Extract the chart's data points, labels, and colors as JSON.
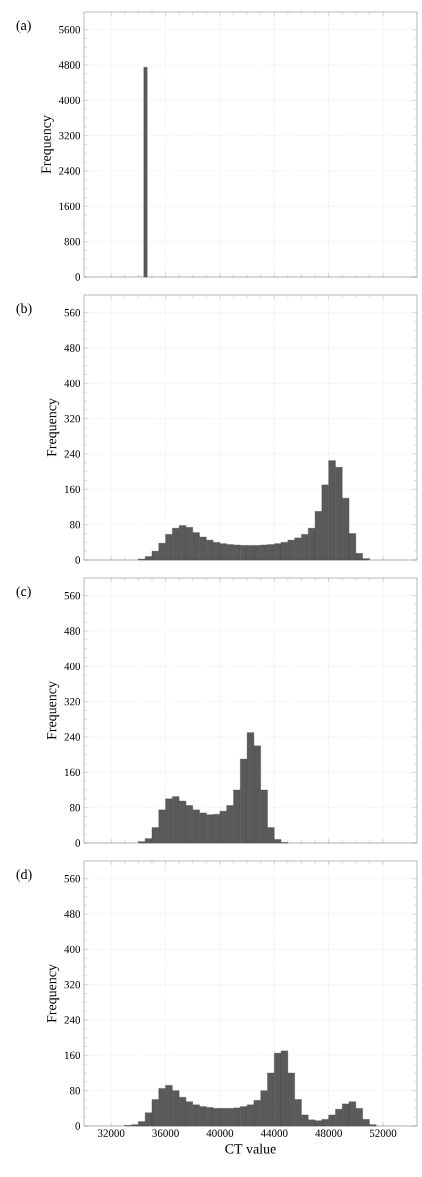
{
  "chart_data": [
    {
      "type": "histogram",
      "title": "(a)",
      "ylabel": "Frequency",
      "color": "#5a5a5a",
      "bins": [
        34400,
        34650
      ],
      "values": [
        4750
      ],
      "xlim": [
        30000,
        54500
      ],
      "xticks": [
        32000,
        36000,
        40000,
        44000,
        48000,
        52000
      ],
      "ylim": [
        0,
        6000
      ],
      "yticks": [
        0,
        800,
        1600,
        2400,
        3200,
        4000,
        4800,
        5600
      ],
      "grid": true,
      "tick_labels": "y"
    },
    {
      "type": "histogram",
      "title": "(b)",
      "ylabel": "Frequency",
      "color": "#5a5a5a",
      "bins": [
        34000,
        34500,
        35000,
        35500,
        36000,
        36500,
        37000,
        37500,
        38000,
        38500,
        39000,
        39500,
        40000,
        40500,
        41000,
        41500,
        42000,
        42500,
        43000,
        43500,
        44000,
        44500,
        45000,
        45500,
        46000,
        46500,
        47000,
        47500,
        48000,
        48500,
        49000,
        49500,
        50000,
        50500,
        51000
      ],
      "values": [
        2,
        8,
        20,
        38,
        58,
        72,
        78,
        74,
        62,
        52,
        45,
        40,
        37,
        35,
        34,
        33,
        33,
        33,
        34,
        35,
        37,
        40,
        45,
        50,
        58,
        72,
        110,
        170,
        225,
        210,
        140,
        60,
        15,
        3
      ],
      "xlim": [
        30000,
        54500
      ],
      "xticks": [
        32000,
        36000,
        40000,
        44000,
        48000,
        52000
      ],
      "ylim": [
        0,
        600
      ],
      "yticks": [
        0,
        80,
        160,
        240,
        320,
        400,
        480,
        560
      ],
      "grid": true,
      "tick_labels": "y"
    },
    {
      "type": "histogram",
      "title": "(c)",
      "ylabel": "Frequency",
      "color": "#5a5a5a",
      "bins": [
        34000,
        34500,
        35000,
        35500,
        36000,
        36500,
        37000,
        37500,
        38000,
        38500,
        39000,
        39500,
        40000,
        40500,
        41000,
        41500,
        42000,
        42500,
        43000,
        43500,
        44000,
        44500,
        45000
      ],
      "values": [
        3,
        10,
        35,
        75,
        100,
        105,
        95,
        85,
        75,
        68,
        64,
        65,
        72,
        85,
        120,
        190,
        250,
        220,
        120,
        35,
        8,
        1
      ],
      "xlim": [
        30000,
        54500
      ],
      "xticks": [
        32000,
        36000,
        40000,
        44000,
        48000,
        52000
      ],
      "ylim": [
        0,
        600
      ],
      "yticks": [
        0,
        80,
        160,
        240,
        320,
        400,
        480,
        560
      ],
      "grid": true,
      "tick_labels": "y"
    },
    {
      "type": "histogram",
      "title": "(d)",
      "ylabel": "Frequency",
      "xlabel": "CT value",
      "color": "#5a5a5a",
      "bins": [
        33000,
        33500,
        34000,
        34500,
        35000,
        35500,
        36000,
        36500,
        37000,
        37500,
        38000,
        38500,
        39000,
        39500,
        40000,
        40500,
        41000,
        41500,
        42000,
        42500,
        43000,
        43500,
        44000,
        44500,
        45000,
        45500,
        46000,
        46500,
        47000,
        47500,
        48000,
        48500,
        49000,
        49500,
        50000,
        50500,
        51000,
        51500
      ],
      "values": [
        1,
        3,
        10,
        30,
        60,
        85,
        92,
        80,
        65,
        55,
        48,
        44,
        42,
        40,
        40,
        40,
        41,
        44,
        48,
        58,
        80,
        120,
        165,
        170,
        120,
        60,
        25,
        14,
        12,
        15,
        25,
        38,
        50,
        55,
        40,
        15,
        3
      ],
      "xlim": [
        30000,
        54500
      ],
      "xticks": [
        32000,
        36000,
        40000,
        44000,
        48000,
        52000
      ],
      "ylim": [
        0,
        600
      ],
      "yticks": [
        0,
        80,
        160,
        240,
        320,
        400,
        480,
        560
      ],
      "grid": true
    }
  ]
}
